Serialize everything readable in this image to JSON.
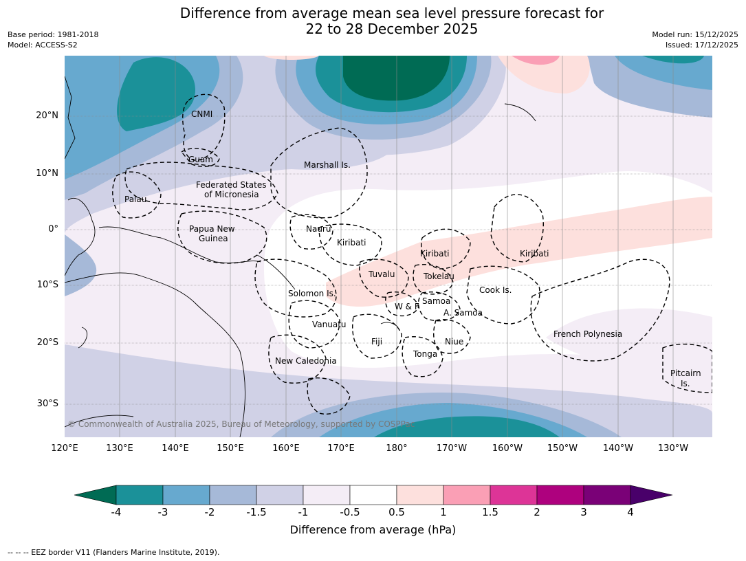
{
  "header": {
    "title_line1": "Difference from average mean sea level pressure forecast for",
    "title_line2": "22 to 28 December 2025",
    "base_period": "Base period: 1981-2018",
    "model": "Model: ACCESS-S2",
    "model_run": "Model run: 15/12/2025",
    "issued": "Issued: 17/12/2025"
  },
  "axes": {
    "lat_labels": [
      "20°N",
      "10°N",
      "0°",
      "10°S",
      "20°S",
      "30°S"
    ],
    "lon_labels": [
      "120°E",
      "130°E",
      "140°E",
      "150°E",
      "160°E",
      "170°E",
      "180°",
      "170°W",
      "160°W",
      "150°W",
      "140°W",
      "130°W"
    ]
  },
  "regions": [
    "CNMI",
    "Guam",
    "Marshall Is.",
    "Federated States",
    "of Micronesia",
    "Palau",
    "Papua New",
    "Guinea",
    "Nauru",
    "Kiribati",
    "Kiribati",
    "Kiribati",
    "Tuvalu",
    "Tokelau",
    "Solomon Is.",
    "W & F",
    "Samoa",
    "A. Samoa",
    "Cook Is.",
    "Vanuatu",
    "Fiji",
    "Niue",
    "Tonga",
    "New Caledonia",
    "French Polynesia",
    "Pitcairn",
    "Is."
  ],
  "copyright": "© Commonwealth of Australia 2025, Bureau of Meteorology, supported by COSPPac",
  "colorbar": {
    "ticks": [
      "-4",
      "-3",
      "-2",
      "-1.5",
      "-1",
      "-0.5",
      "0.5",
      "1",
      "1.5",
      "2",
      "3",
      "4"
    ],
    "colors": [
      "#006b54",
      "#1b9199",
      "#67a9cf",
      "#a6b9d8",
      "#d0d1e6",
      "#f4edf6",
      "#ffffff",
      "#fde0dd",
      "#fa9fb5",
      "#dd3497",
      "#ae017e",
      "#7a0177",
      "#49006a"
    ],
    "label": "Difference from average (hPa)"
  },
  "footer": "--  --  -- EEZ border V11 (Flanders Marine Institute, 2019)."
}
